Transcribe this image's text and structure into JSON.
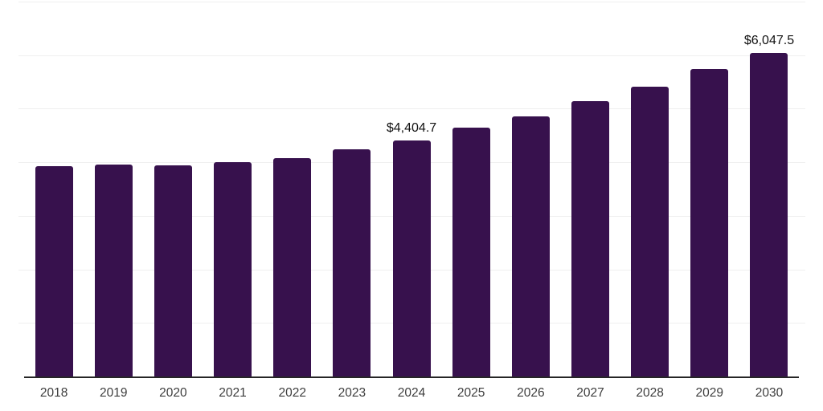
{
  "chart_data": {
    "type": "bar",
    "title": "",
    "xlabel": "",
    "ylabel": "",
    "categories": [
      "2018",
      "2019",
      "2020",
      "2021",
      "2022",
      "2023",
      "2024",
      "2025",
      "2026",
      "2027",
      "2028",
      "2029",
      "2030"
    ],
    "values": [
      3920,
      3960,
      3935,
      4000,
      4070,
      4235,
      4404.7,
      4645,
      4860,
      5135,
      5410,
      5735,
      6047.5
    ],
    "data_labels": {
      "2024": "$4,404.7",
      "2030": "$6,047.5"
    },
    "ylim": [
      0,
      7000
    ],
    "gridline_interval": 1000,
    "grid": true,
    "legend": "none",
    "y_axis_labels_visible": false,
    "colors": {
      "bar": "#37114D",
      "gridline": "#efefef",
      "axis_line": "#262626",
      "x_tick_label": "#3d3d3d",
      "data_label": "#111111",
      "background": "#ffffff"
    }
  }
}
